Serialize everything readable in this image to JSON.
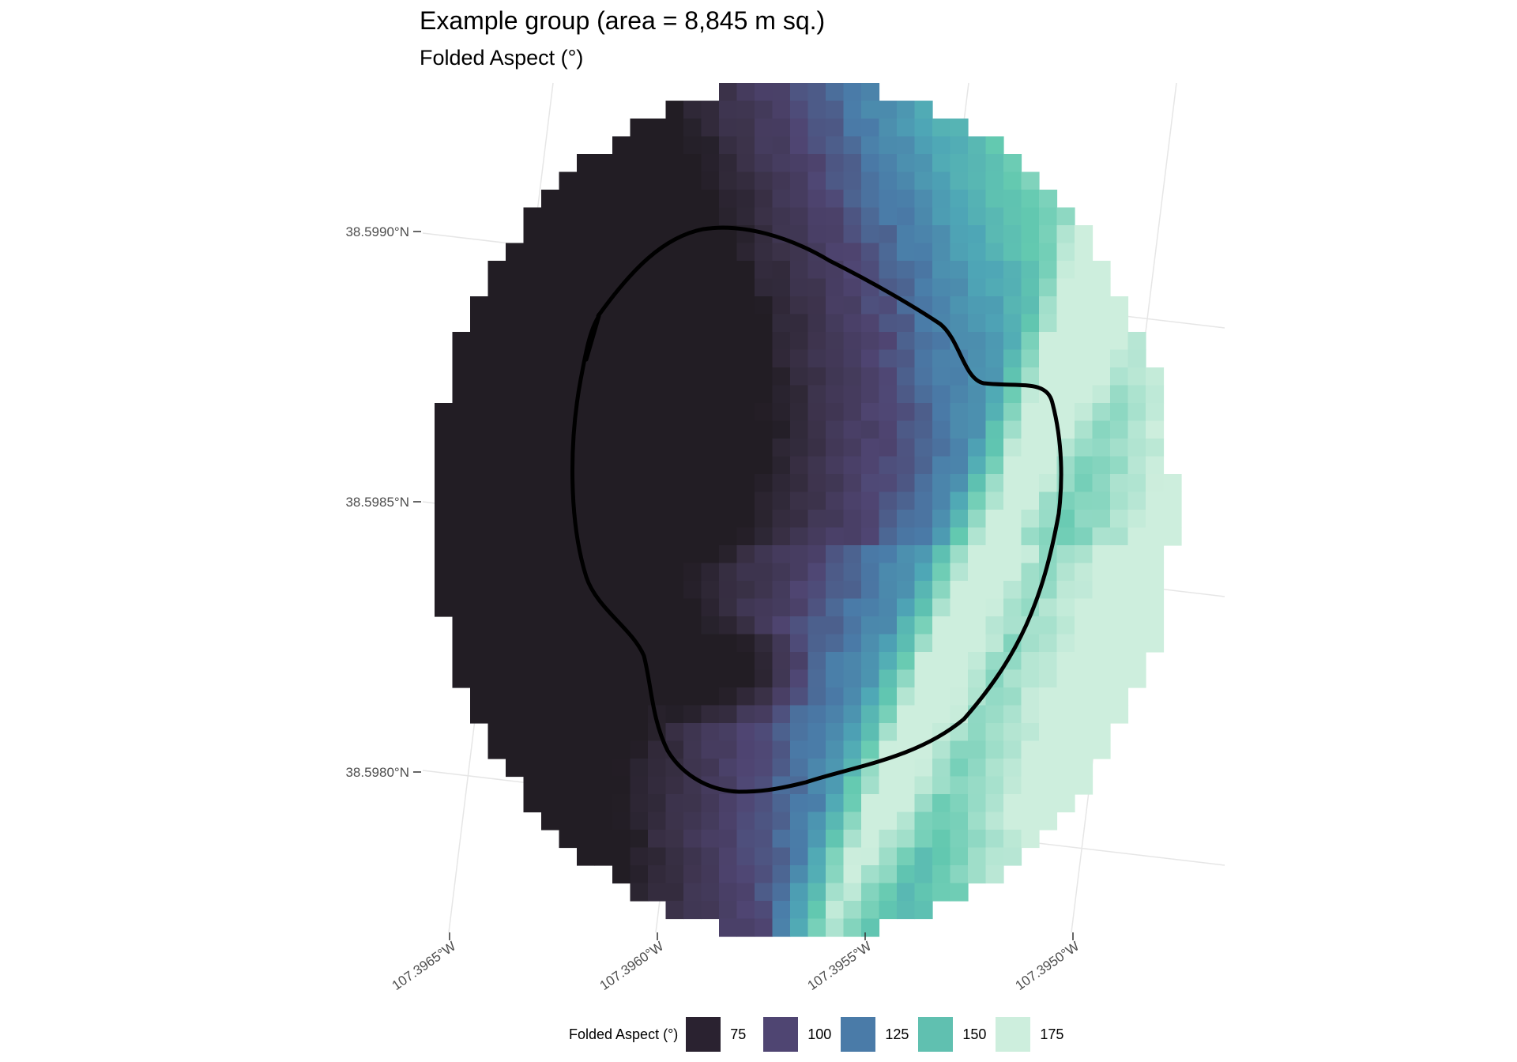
{
  "title": "Example group (area = 8,845 m sq.)",
  "subtitle": "Folded Aspect (°)",
  "map": {
    "lat_ticks": [
      "38.5990°N",
      "38.5985°N",
      "38.5980°N"
    ],
    "lon_ticks": [
      "107.3965°W",
      "107.3960°W",
      "107.3955°W",
      "107.3950°W"
    ],
    "raster_variable": "Folded Aspect (°)",
    "overlay": "hand-drawn black outline"
  },
  "legend": {
    "title": "Folded Aspect (°)",
    "items": [
      {
        "label": "75",
        "color": "#2a2230"
      },
      {
        "label": "100",
        "color": "#4f4572"
      },
      {
        "label": "125",
        "color": "#4a7ba8"
      },
      {
        "label": "150",
        "color": "#60c0b0"
      },
      {
        "label": "175",
        "color": "#cdeedd"
      }
    ]
  },
  "colors": {
    "grid": "#e6e6e6",
    "outline": "#000000",
    "dark": "#221d24",
    "purple_dark": "#3a3147",
    "purple": "#4f4572",
    "blue": "#4a7ba8",
    "teal": "#4ea6b6",
    "green": "#63c9b0",
    "mint": "#cdeedd"
  }
}
